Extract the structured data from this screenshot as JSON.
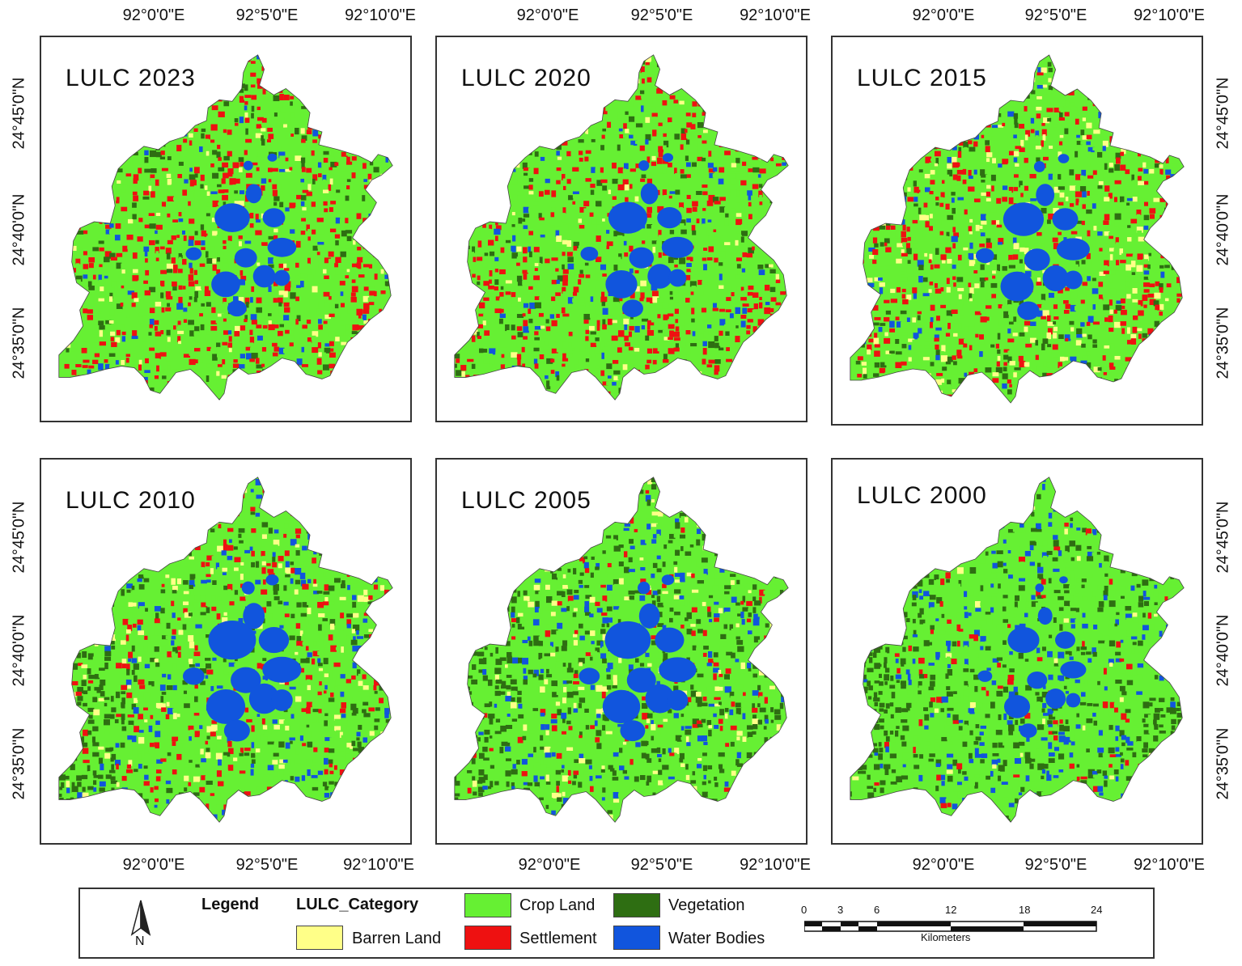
{
  "longitude_labels": [
    "92°0'0\"E",
    "92°5'0\"E",
    "92°10'0\"E"
  ],
  "latitude_labels": [
    "24°45'0\"N",
    "24°40'0\"N",
    "24°35'0\"N"
  ],
  "panels": [
    {
      "title": "LULC 2023",
      "year": 2023
    },
    {
      "title": "LULC 2020",
      "year": 2020
    },
    {
      "title": "LULC 2015",
      "year": 2015
    },
    {
      "title": "LULC 2010",
      "year": 2010
    },
    {
      "title": "LULC 2005",
      "year": 2005
    },
    {
      "title": "LULC 2000",
      "year": 2000
    }
  ],
  "legend": {
    "heading": "Legend",
    "category_field": "LULC_Category",
    "north_label": "N",
    "items": [
      {
        "label": "Crop Land",
        "color": "#66f033"
      },
      {
        "label": "Vegetation",
        "color": "#2e6e12"
      },
      {
        "label": "Barren Land",
        "color": "#ffff88"
      },
      {
        "label": "Settlement",
        "color": "#ee1111"
      },
      {
        "label": "Water Bodies",
        "color": "#1155dd"
      }
    ],
    "scale_ticks": [
      "0",
      "3",
      "6",
      "12",
      "18",
      "24"
    ],
    "scale_unit": "Kilometers"
  }
}
